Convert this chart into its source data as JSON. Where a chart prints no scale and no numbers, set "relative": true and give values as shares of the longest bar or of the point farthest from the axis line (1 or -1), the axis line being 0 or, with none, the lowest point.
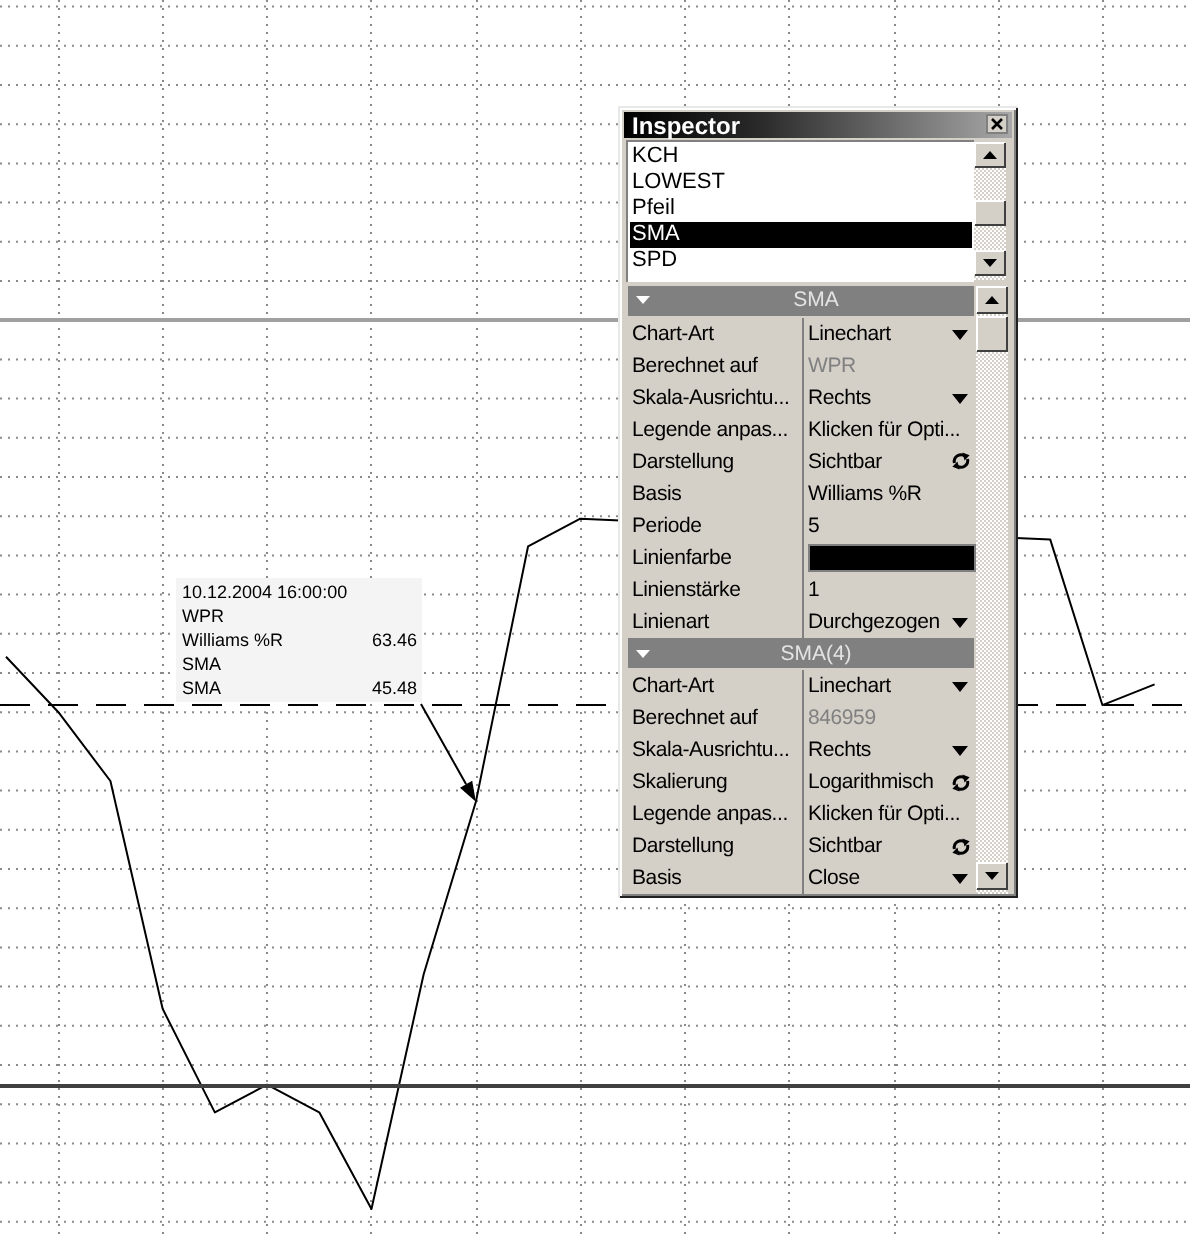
{
  "chart_data": [
    {
      "type": "line",
      "categories": [
        null,
        null,
        null,
        null,
        null,
        null,
        null,
        null,
        null,
        null,
        null,
        null,
        null,
        null,
        null,
        null,
        null,
        null,
        null,
        null,
        null,
        null,
        null
      ],
      "values": [
        0.8,
        0.72,
        0.62,
        0.29,
        0.14,
        0.18,
        0.14,
        0,
        0.34,
        0.59,
        0.96,
        1,
        null,
        null,
        null,
        null,
        null,
        null,
        null,
        null,
        0.97,
        0.73,
        0.76
      ],
      "color": "#000000",
      "relative": true,
      "grid": true,
      "ref_lines": [
        {
          "axis": "y",
          "value": 1.29,
          "color": "#a0a0a0",
          "line_style": "solid"
        },
        {
          "axis": "y",
          "value": 0.73,
          "color": "#000000",
          "line_style": "dashed"
        },
        {
          "axis": "y",
          "value": 0.18,
          "color": "#404040",
          "line_style": "solid"
        }
      ],
      "annotations": [
        "10.12.2004 16:00:00",
        "WPR",
        "Williams %R",
        "63.46",
        "SMA",
        "SMA",
        "45.48"
      ]
    },
    {
      "type": "other",
      "title": "Inspector",
      "annotations": [
        "KCH",
        "LOWEST",
        "Pfeil",
        "SMA",
        "SPD",
        "SMA",
        "Chart-Art",
        "Linechart",
        "Berechnet auf",
        "WPR",
        "Skala-Ausrichtu...",
        "Rechts",
        "Legende anpas...",
        "Klicken für Opti...",
        "Darstellung",
        "Sichtbar",
        "Basis",
        "Williams %R",
        "Periode",
        "5",
        "Linienfarbe",
        "Linienstärke",
        "1",
        "Linienart",
        "Durchgezogen",
        "SMA(4)",
        "Chart-Art",
        "Linechart",
        "Berechnet auf",
        "846959",
        "Skala-Ausrichtu...",
        "Rechts",
        "Skalierung",
        "Logarithmisch",
        "Legende anpas...",
        "Klicken für Opti...",
        "Darstellung",
        "Sichtbar",
        "Basis",
        "Close"
      ]
    }
  ]
}
